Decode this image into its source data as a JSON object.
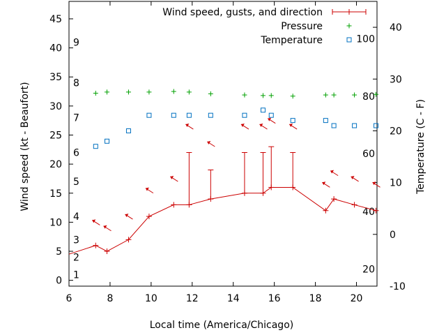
{
  "chart_data": {
    "type": "line",
    "xlabel": "Local time (America/Chicago)",
    "ylabel": "Wind speed (kt - Beaufort)",
    "y2label": "Temperature (C - F)",
    "xlim": [
      6,
      21
    ],
    "ylim": [
      -1,
      48
    ],
    "y2lim": [
      -10,
      45
    ],
    "xticks": [
      "6",
      "8",
      "10",
      "12",
      "14",
      "16",
      "18",
      "20"
    ],
    "yticks": [
      "0",
      "5",
      "10",
      "15",
      "20",
      "25",
      "30",
      "35",
      "40",
      "45"
    ],
    "y2ticks": [
      "-10",
      "0",
      "10",
      "20",
      "30",
      "40"
    ],
    "beaufort_labels": [
      {
        "label": "1",
        "wind": 1
      },
      {
        "label": "2",
        "wind": 4
      },
      {
        "label": "3",
        "wind": 7
      },
      {
        "label": "4",
        "wind": 11
      },
      {
        "label": "5",
        "wind": 17
      },
      {
        "label": "6",
        "wind": 22
      },
      {
        "label": "7",
        "wind": 28
      },
      {
        "label": "8",
        "wind": 34
      },
      {
        "label": "9",
        "wind": 41
      }
    ],
    "fahrenheit_labels": [
      {
        "label": "20",
        "temp": -6.7
      },
      {
        "label": "40",
        "temp": 4.4
      },
      {
        "label": "60",
        "temp": 15.6
      },
      {
        "label": "80",
        "temp": 26.7
      },
      {
        "label": "100",
        "temp": 37.8
      }
    ],
    "legend_position": "top-right",
    "series": [
      {
        "name": "Wind speed, gusts, and direction",
        "color": "#cc0000",
        "marker": "plus",
        "x": [
          6.0,
          7.3,
          7.85,
          8.9,
          9.9,
          11.1,
          11.85,
          12.9,
          14.55,
          15.45,
          15.85,
          16.9,
          18.5,
          18.9,
          19.9,
          20.95
        ],
        "y": [
          4.5,
          6,
          5,
          7,
          11,
          13,
          13,
          14,
          15,
          15,
          16,
          16,
          12,
          14,
          13,
          12
        ],
        "gusts": [
          null,
          null,
          null,
          null,
          null,
          null,
          22,
          19,
          22,
          22,
          23,
          22,
          null,
          null,
          null,
          null
        ],
        "direction_arrows": [
          {
            "x": 7.3,
            "wind": 10
          },
          {
            "x": 7.85,
            "wind": 9
          },
          {
            "x": 8.9,
            "wind": 11
          },
          {
            "x": 9.9,
            "wind": 15.5
          },
          {
            "x": 11.1,
            "wind": 17.5
          },
          {
            "x": 11.85,
            "wind": 26.5
          },
          {
            "x": 12.9,
            "wind": 23.5
          },
          {
            "x": 14.55,
            "wind": 26.5
          },
          {
            "x": 15.45,
            "wind": 26.5
          },
          {
            "x": 15.85,
            "wind": 27.5
          },
          {
            "x": 16.9,
            "wind": 26.5
          },
          {
            "x": 18.5,
            "wind": 16.5
          },
          {
            "x": 18.9,
            "wind": 18.5
          },
          {
            "x": 19.9,
            "wind": 17.5
          },
          {
            "x": 20.95,
            "wind": 16.5
          }
        ]
      },
      {
        "name": "Pressure",
        "color": "#00a000",
        "marker": "plus",
        "x": [
          7.3,
          7.85,
          8.9,
          9.9,
          11.1,
          11.85,
          12.9,
          14.55,
          15.45,
          15.85,
          16.9,
          18.5,
          18.9,
          19.9,
          20.95
        ],
        "y": [
          32.2,
          32.4,
          32.4,
          32.4,
          32.5,
          32.4,
          32.1,
          31.9,
          31.8,
          31.8,
          31.7,
          31.9,
          31.9,
          31.9,
          32.0
        ]
      },
      {
        "name": "Temperature",
        "color": "#0070c0",
        "marker": "square",
        "axis": "y2",
        "x": [
          7.3,
          7.85,
          8.9,
          9.9,
          11.1,
          11.85,
          12.9,
          14.55,
          15.45,
          15.85,
          16.9,
          18.5,
          18.9,
          19.9,
          20.95
        ],
        "y": [
          17,
          18,
          20,
          23,
          23,
          23,
          23,
          23,
          24,
          23,
          22,
          22,
          21,
          21,
          21
        ]
      }
    ]
  }
}
